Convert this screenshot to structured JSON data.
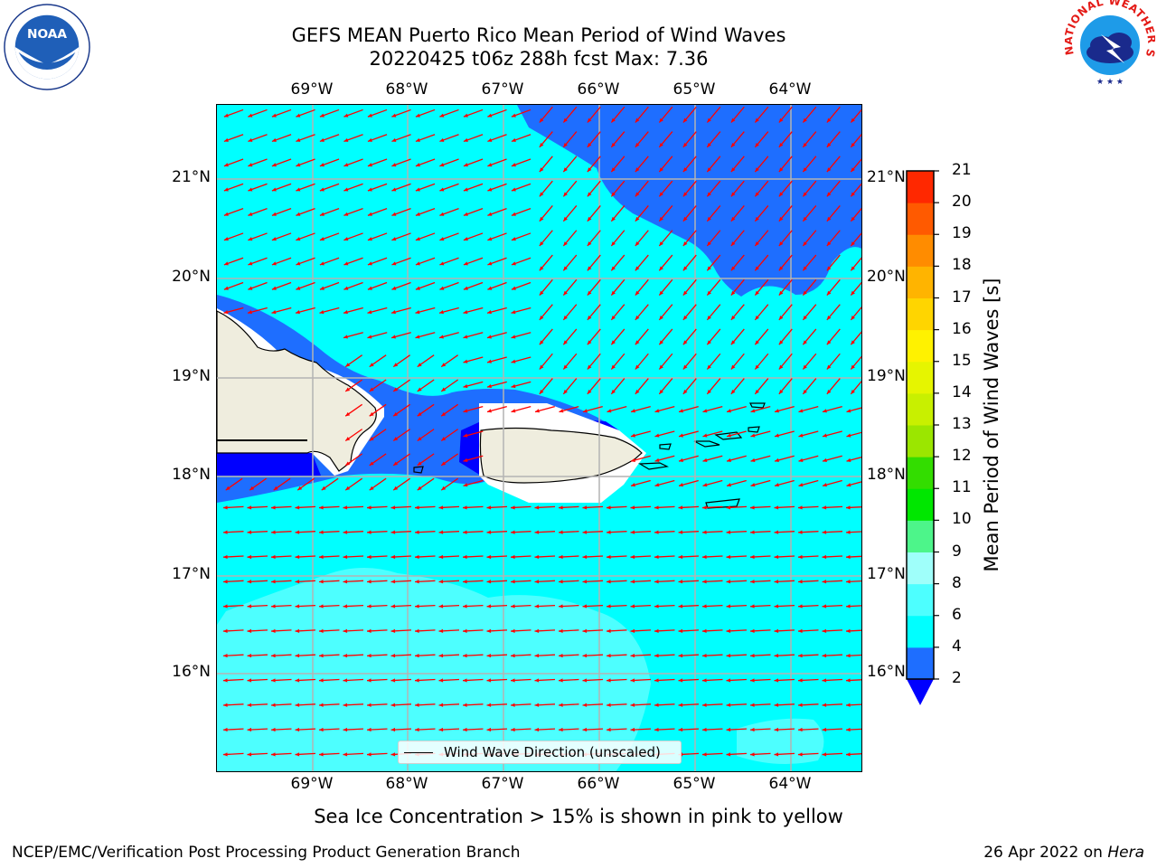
{
  "title": {
    "line1": "GEFS MEAN Puerto Rico Mean Period of Wind Waves",
    "line2": "20220425 t06z 288h fcst   Max: 7.36"
  },
  "map": {
    "lon_ticks": [
      "69°W",
      "68°W",
      "67°W",
      "66°W",
      "65°W",
      "64°W"
    ],
    "lat_ticks": [
      "21°N",
      "20°N",
      "19°N",
      "18°N",
      "17°N",
      "16°N"
    ],
    "legend_label": "Wind Wave Direction (unscaled)",
    "arrow_color": "#ff0000",
    "land_color": "#efedde",
    "coast_color": "#000000"
  },
  "colorbar": {
    "title": "Mean Period of Wind Waves [s]",
    "levels": [
      "2",
      "4",
      "6",
      "8",
      "9",
      "10",
      "11",
      "12",
      "13",
      "14",
      "15",
      "16",
      "17",
      "18",
      "19",
      "20",
      "21"
    ],
    "colors": [
      "#1e6eff",
      "#00ffff",
      "#4dffff",
      "#9ffffa",
      "#4df58a",
      "#00e700",
      "#33dd00",
      "#9be600",
      "#c8f000",
      "#e6f500",
      "#fff200",
      "#ffd500",
      "#ffb400",
      "#ff8c00",
      "#ff5a00",
      "#ff2800"
    ],
    "under_color": "#0000ff"
  },
  "footnote": "Sea Ice Concentration > 15% is shown in pink to yellow",
  "footer": {
    "left": "NCEP/EMC/Verification Post Processing Product Generation Branch",
    "right_prefix": "26 Apr 2022 on ",
    "right_host": "Hera"
  },
  "logos": {
    "noaa_text": "NOAA",
    "nws_ring_text": "NATIONAL WEATHER SERVICE"
  }
}
